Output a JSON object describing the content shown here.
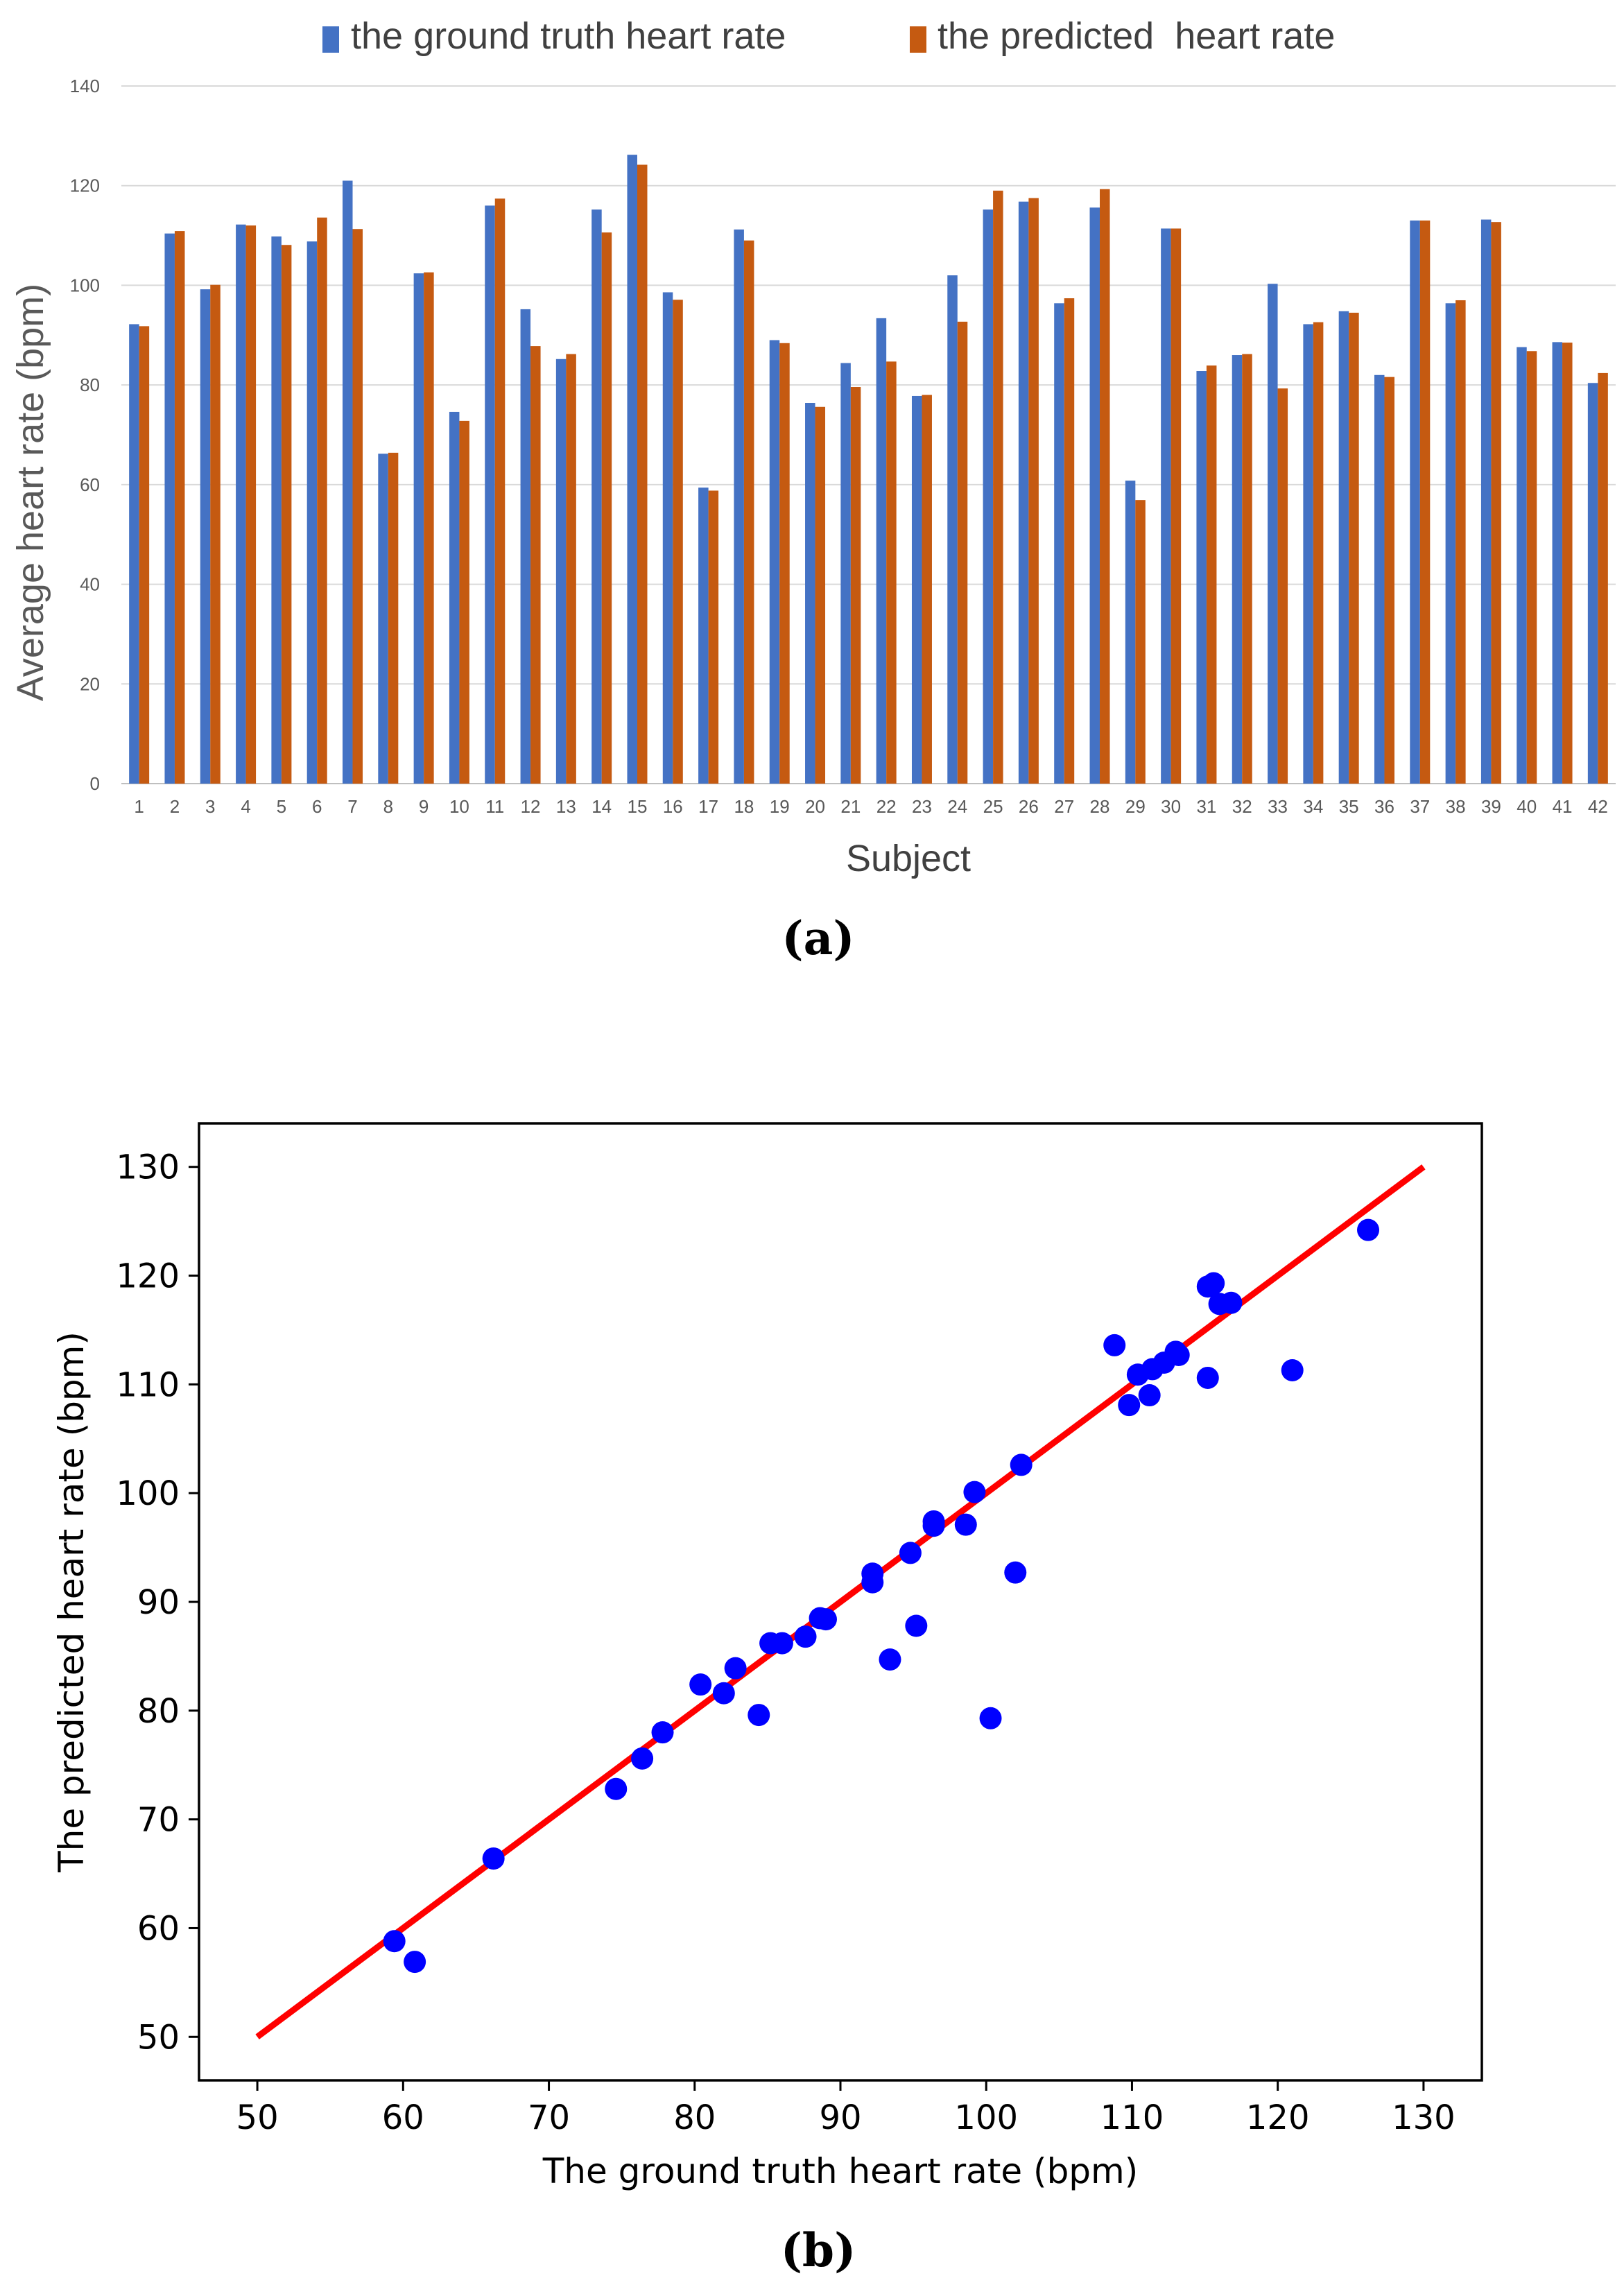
{
  "chart_data": [
    {
      "id": "a",
      "type": "bar",
      "panel_label": "(a)",
      "xlabel": "Subject",
      "ylabel": "Average heart rate (bpm)",
      "ylim": [
        0,
        140
      ],
      "yticks": [
        0,
        20,
        40,
        60,
        80,
        100,
        120,
        140
      ],
      "grid": true,
      "legend": "top-center",
      "categories": [
        "1",
        "2",
        "3",
        "4",
        "5",
        "6",
        "7",
        "8",
        "9",
        "10",
        "11",
        "12",
        "13",
        "14",
        "15",
        "16",
        "17",
        "18",
        "19",
        "20",
        "21",
        "22",
        "23",
        "24",
        "25",
        "26",
        "27",
        "28",
        "29",
        "30",
        "31",
        "32",
        "33",
        "34",
        "35",
        "36",
        "37",
        "38",
        "39",
        "40",
        "41",
        "42"
      ],
      "series": [
        {
          "name": "the ground truth heart rate",
          "color": "#4472C4",
          "values": [
            92.2,
            110.4,
            99.2,
            112.2,
            109.8,
            108.8,
            121.0,
            66.2,
            102.4,
            74.6,
            116.0,
            95.2,
            85.2,
            115.2,
            126.2,
            98.6,
            59.4,
            111.2,
            89.0,
            76.4,
            84.4,
            93.4,
            77.8,
            102.0,
            115.2,
            116.8,
            96.4,
            115.6,
            60.8,
            111.4,
            82.8,
            86.0,
            100.3,
            92.2,
            94.8,
            82.0,
            113.0,
            96.4,
            113.2,
            87.6,
            88.6,
            80.4
          ]
        },
        {
          "name": "the predicted  heart rate",
          "color": "#C55A11",
          "values": [
            91.8,
            110.9,
            100.1,
            112.0,
            108.1,
            113.6,
            111.3,
            66.4,
            102.6,
            72.8,
            117.4,
            87.8,
            86.2,
            110.6,
            124.2,
            97.1,
            58.8,
            109.0,
            88.4,
            75.6,
            79.6,
            84.7,
            78.0,
            92.7,
            119.0,
            117.5,
            97.4,
            119.3,
            56.9,
            111.4,
            83.9,
            86.2,
            79.3,
            92.6,
            94.5,
            81.6,
            113.0,
            97.0,
            112.7,
            86.8,
            88.5,
            82.4
          ]
        }
      ]
    },
    {
      "id": "b",
      "type": "scatter",
      "panel_label": "(b)",
      "xlabel": "The ground truth heart rate (bpm)",
      "ylabel": "The predicted heart rate (bpm)",
      "xlim": [
        46,
        134
      ],
      "ylim": [
        46,
        134
      ],
      "xticks": [
        50,
        60,
        70,
        80,
        90,
        100,
        110,
        120,
        130
      ],
      "yticks": [
        50,
        60,
        70,
        80,
        90,
        100,
        110,
        120,
        130
      ],
      "point_color": "#0000FF",
      "fit_line": {
        "color": "#FF0000",
        "from": [
          50,
          50
        ],
        "to": [
          130,
          130
        ]
      },
      "points_source": "same subject values as panel (a): x = ground truth, y = predicted"
    }
  ]
}
